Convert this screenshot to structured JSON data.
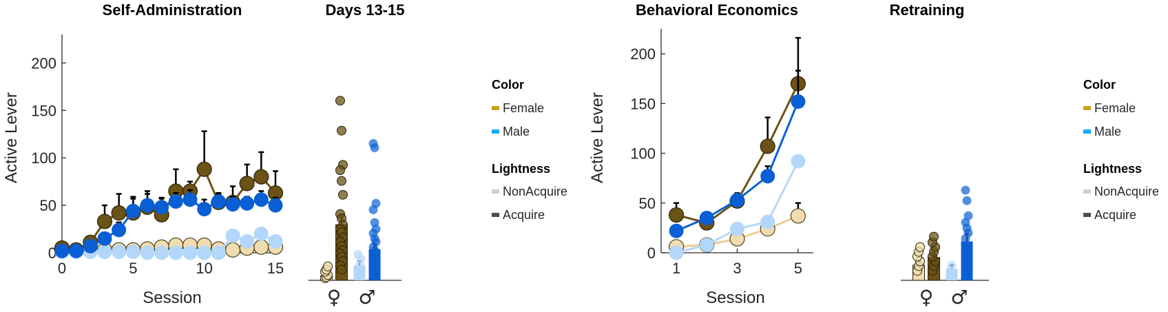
{
  "colors": {
    "female_acquire": "#6b5215",
    "female_nonacquire": "#f0dcae",
    "male_acquire": "#0a5fd4",
    "male_nonacquire": "#b3d7fa",
    "legend_female": "#c9a21d",
    "legend_male": "#1aaaf2",
    "legend_nonacquire": "#cfcfcf",
    "legend_acquire": "#4d4d4d"
  },
  "legend": {
    "color_title": "Color",
    "female": "Female",
    "male": "Male",
    "lightness_title": "Lightness",
    "nonacquire": "NonAcquire",
    "acquire": "Acquire"
  },
  "chart_data": [
    {
      "type": "line",
      "title": "Self-Administration",
      "xlabel": "Session",
      "ylabel": "Active Lever",
      "xlim": [
        0,
        15
      ],
      "ylim": [
        0,
        230
      ],
      "xticks": [
        0,
        5,
        10,
        15
      ],
      "yticks": [
        0,
        50,
        100,
        150,
        200
      ],
      "x": [
        0,
        1,
        2,
        3,
        4,
        5,
        6,
        7,
        8,
        9,
        10,
        11,
        12,
        13,
        14,
        15
      ],
      "series": [
        {
          "group": "female_acquire",
          "values": [
            5,
            3,
            11,
            33,
            42,
            42,
            48,
            40,
            65,
            65,
            88,
            53,
            53,
            73,
            80,
            63
          ],
          "errors": [
            2,
            2,
            5,
            17,
            20,
            17,
            17,
            17,
            23,
            10,
            40,
            10,
            17,
            20,
            26,
            23
          ]
        },
        {
          "group": "male_acquire",
          "values": [
            2,
            2,
            7,
            15,
            24,
            44,
            50,
            48,
            54,
            56,
            46,
            54,
            51,
            52,
            56,
            50
          ],
          "errors": [
            1,
            1,
            3,
            6,
            8,
            13,
            12,
            10,
            9,
            10,
            10,
            8,
            8,
            7,
            9,
            8
          ]
        },
        {
          "group": "female_nonacquire",
          "values": [
            2,
            2,
            3,
            3,
            3,
            3,
            4,
            6,
            8,
            8,
            8,
            4,
            3,
            5,
            6,
            6
          ],
          "errors": [
            1,
            1,
            1,
            1,
            1,
            1,
            1,
            2,
            2,
            2,
            2,
            1,
            1,
            2,
            2,
            2
          ]
        },
        {
          "group": "male_nonacquire",
          "values": [
            1,
            1,
            1,
            1,
            1,
            1,
            0,
            0,
            0,
            0,
            0,
            0,
            18,
            12,
            20,
            12
          ],
          "errors": [
            1,
            1,
            1,
            1,
            1,
            1,
            0,
            0,
            0,
            0,
            0,
            0,
            4,
            3,
            5,
            3
          ]
        }
      ]
    },
    {
      "type": "bar",
      "title": "Days 13-15",
      "ylim": [
        0,
        230
      ],
      "categories": [
        "♀",
        "♂"
      ],
      "bars": [
        {
          "group": "female_nonacquire",
          "value": 4,
          "error": 2,
          "points": [
            2,
            3,
            5,
            8,
            10,
            13
          ]
        },
        {
          "group": "female_acquire",
          "value": 52,
          "error": 9,
          "points": [
            168,
            140,
            108,
            103,
            93,
            80,
            62,
            58,
            52,
            48,
            45,
            40,
            36,
            32,
            28,
            25,
            22,
            18,
            14,
            10
          ]
        },
        {
          "group": "male_nonacquire",
          "value": 14,
          "error": 4,
          "points": [
            10,
            14,
            20,
            24
          ]
        },
        {
          "group": "male_acquire",
          "value": 29,
          "error": 5,
          "points": [
            128,
            124,
            72,
            66,
            54,
            48,
            44,
            39,
            36,
            31,
            28,
            26,
            24
          ]
        }
      ]
    },
    {
      "type": "line",
      "title": "Behavioral Economics",
      "xlabel": "Session",
      "ylabel": "Active Lever",
      "xlim": [
        0.5,
        5.5
      ],
      "ylim": [
        0,
        225
      ],
      "xticks": [
        1,
        3,
        5
      ],
      "yticks": [
        0,
        50,
        100,
        150,
        200
      ],
      "x": [
        1,
        2,
        3,
        4,
        5
      ],
      "series": [
        {
          "group": "female_acquire",
          "values": [
            38,
            30,
            52,
            107,
            170
          ],
          "errors": [
            12,
            5,
            8,
            29,
            46
          ]
        },
        {
          "group": "male_acquire",
          "values": [
            22,
            35,
            53,
            77,
            152
          ],
          "errors": [
            5,
            5,
            5,
            10,
            31
          ]
        },
        {
          "group": "male_nonacquire",
          "values": [
            0,
            8,
            24,
            31,
            92
          ],
          "errors": [
            0,
            1,
            2,
            3,
            3
          ]
        },
        {
          "group": "female_nonacquire",
          "values": [
            6,
            8,
            14,
            24,
            37
          ],
          "errors": [
            2,
            2,
            3,
            9,
            13
          ]
        }
      ]
    },
    {
      "type": "bar",
      "title": "Retraining",
      "ylim": [
        0,
        230
      ],
      "categories": [
        "♀",
        "♂"
      ],
      "bars": [
        {
          "group": "female_nonacquire",
          "value": 16,
          "error": 4,
          "points": [
            10,
            15,
            20,
            25,
            30,
            35
          ]
        },
        {
          "group": "female_acquire",
          "value": 24,
          "error": 4,
          "points": [
            10,
            15,
            20,
            25,
            30,
            35,
            40,
            46
          ]
        },
        {
          "group": "male_nonacquire",
          "value": 12,
          "error": 4,
          "points": [
            10,
            16
          ]
        },
        {
          "group": "male_acquire",
          "value": 41,
          "error": 8,
          "points": [
            95,
            84,
            68,
            61,
            55,
            50,
            44
          ]
        }
      ]
    }
  ]
}
